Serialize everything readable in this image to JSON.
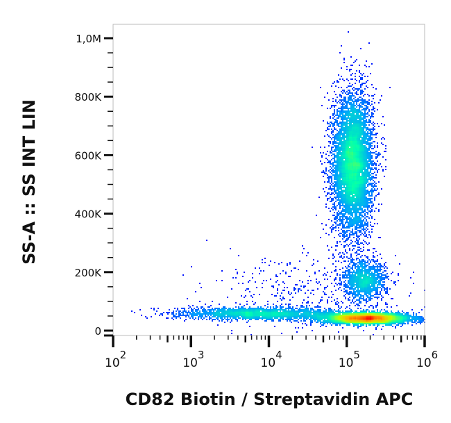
{
  "chart_data": {
    "type": "scatter",
    "subtype": "density-pseudocolor",
    "xlabel": "CD82 Biotin / Streptavidin APC",
    "ylabel": "SS-A :: SS INT LIN",
    "x_scale": "log",
    "xlim": [
      100,
      1000000
    ],
    "ylim": [
      0,
      1050000
    ],
    "x_ticks": [
      {
        "value": 100,
        "base": "10",
        "exp": "2"
      },
      {
        "value": 1000,
        "base": "10",
        "exp": "3"
      },
      {
        "value": 10000,
        "base": "10",
        "exp": "4"
      },
      {
        "value": 100000,
        "base": "10",
        "exp": "5"
      },
      {
        "value": 1000000,
        "base": "10",
        "exp": "6"
      }
    ],
    "y_ticks": [
      {
        "value": 0,
        "label": "0"
      },
      {
        "value": 200000,
        "label": "200K"
      },
      {
        "value": 400000,
        "label": "400K"
      },
      {
        "value": 600000,
        "label": "600K"
      },
      {
        "value": 800000,
        "label": "800K"
      },
      {
        "value": 1000000,
        "label": "1,0M"
      }
    ],
    "populations": [
      {
        "x_center": 120000,
        "x_log_sd": 0.13,
        "y_center": 570000,
        "y_sd": 120000,
        "events": 7000
      },
      {
        "x_center": 170000,
        "x_log_sd": 0.14,
        "y_center": 170000,
        "y_sd": 35000,
        "events": 1300
      },
      {
        "x_center": 180000,
        "x_log_sd": 0.28,
        "y_center": 42000,
        "y_sd": 9000,
        "events": 5000
      },
      {
        "x_center": 8000,
        "x_log_sd": 0.55,
        "y_center": 58000,
        "y_sd": 10000,
        "events": 2200
      },
      {
        "x_center": 30000,
        "x_log_sd": 0.6,
        "y_center": 120000,
        "y_sd": 70000,
        "events": 500
      }
    ],
    "colormap": [
      "#0000ff",
      "#00a0ff",
      "#00ffb0",
      "#c0ff00",
      "#ffb000",
      "#ff0000"
    ],
    "grid": false,
    "legend": "none"
  }
}
